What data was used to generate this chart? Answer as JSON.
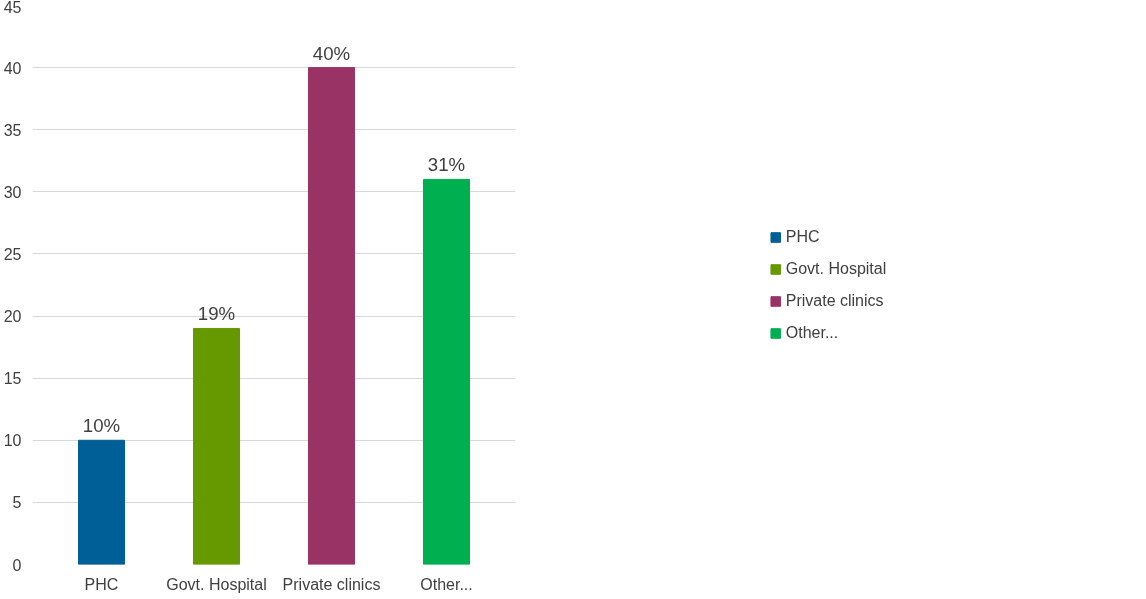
{
  "chart_data": {
    "type": "bar",
    "categories": [
      "PHC",
      "Govt. Hospital",
      "Private clinics",
      "Other..."
    ],
    "series": [
      {
        "name": "PHC",
        "color": "#005f96",
        "values": [
          10,
          null,
          null,
          null
        ],
        "value_labels": [
          "10%",
          null,
          null,
          null
        ]
      },
      {
        "name": "Govt. Hospital",
        "color": "#669900",
        "values": [
          null,
          19,
          null,
          null
        ],
        "value_labels": [
          null,
          "19%",
          null,
          null
        ]
      },
      {
        "name": "Private clinics",
        "color": "#993366",
        "values": [
          null,
          null,
          40,
          null
        ],
        "value_labels": [
          null,
          null,
          "40%",
          null
        ]
      },
      {
        "name": "Other...",
        "color": "#00b050",
        "values": [
          null,
          null,
          null,
          31
        ],
        "value_labels": [
          null,
          null,
          null,
          "31%"
        ]
      }
    ],
    "ylim": [
      0,
      45
    ],
    "yticks": [
      0,
      5,
      10,
      15,
      20,
      25,
      30,
      35,
      40,
      45
    ],
    "grid": "y",
    "legend": "right"
  }
}
